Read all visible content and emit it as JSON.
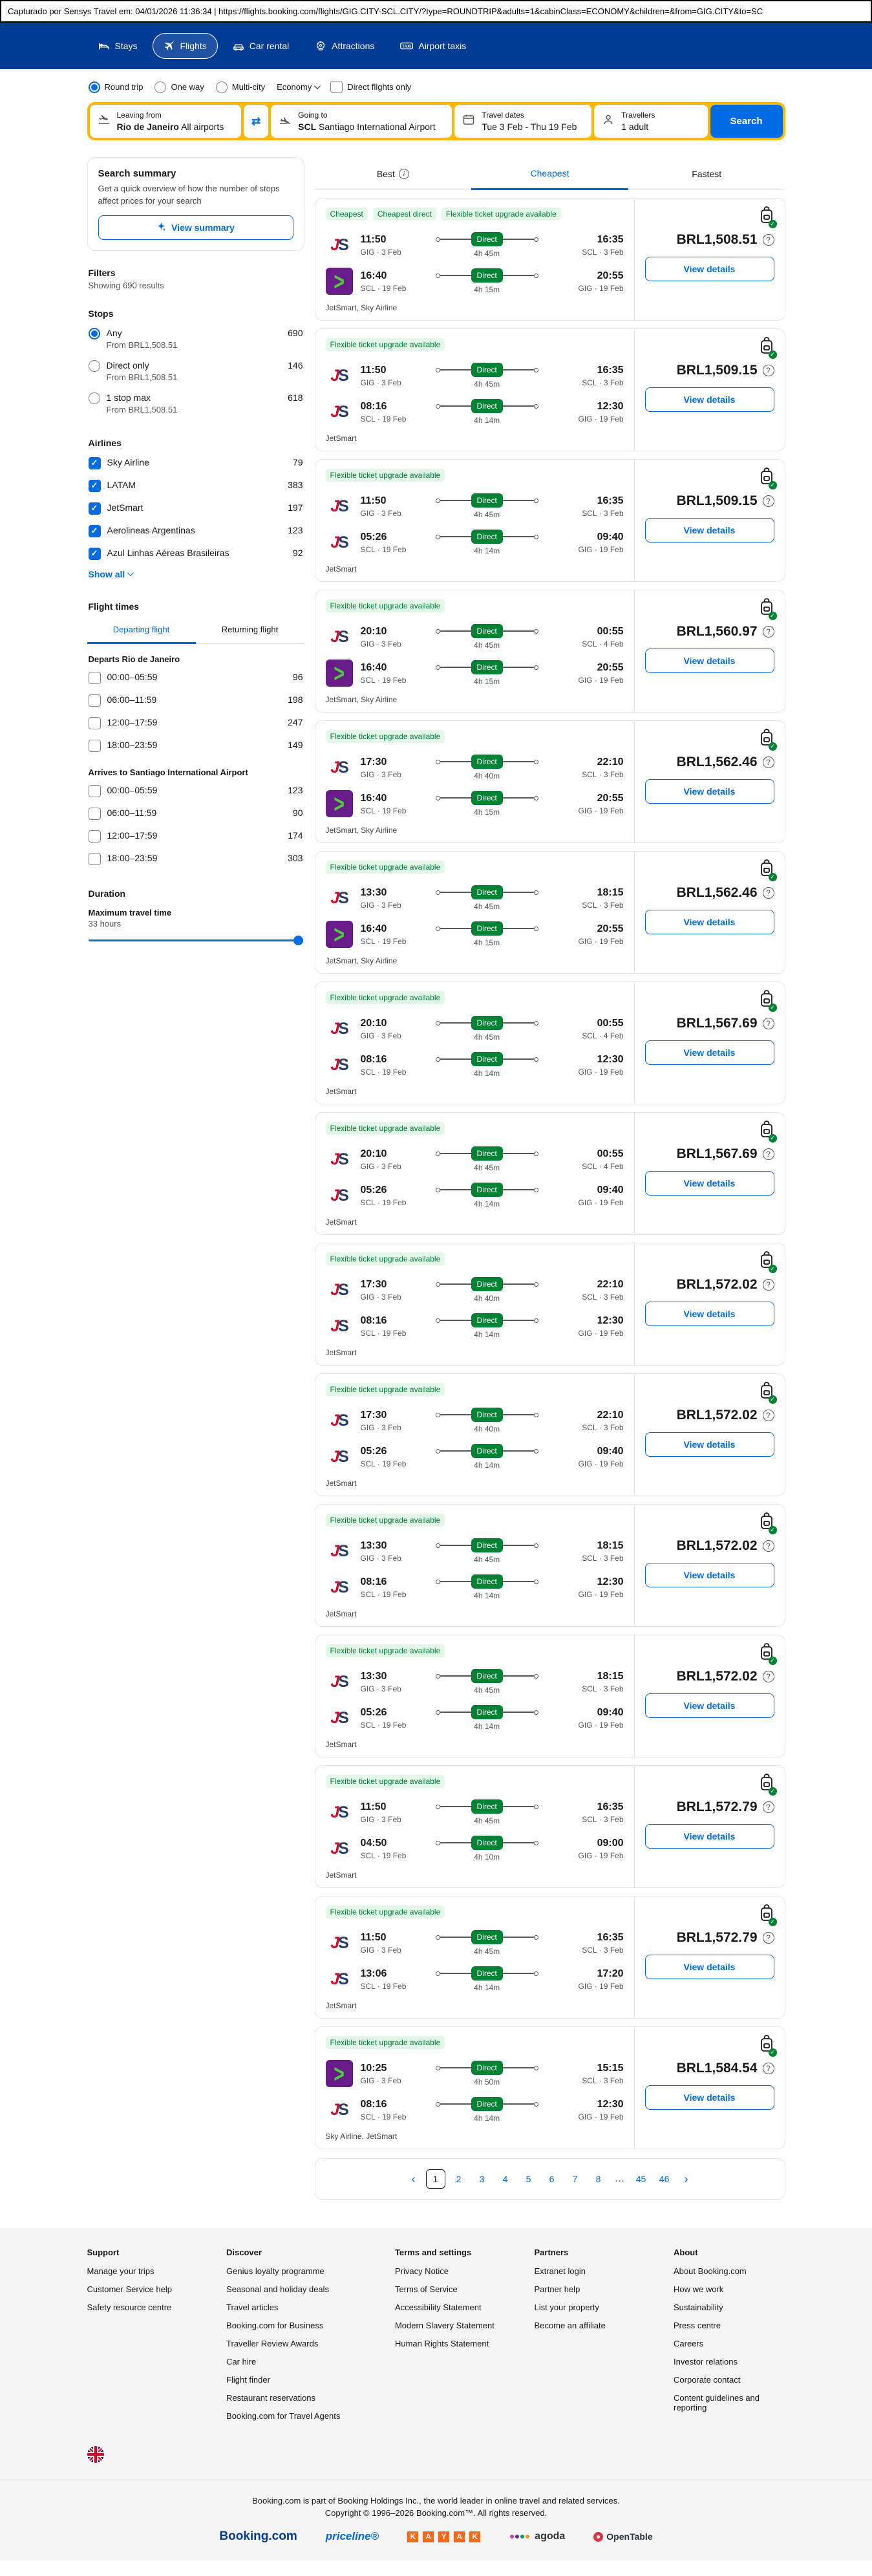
{
  "capture_bar": {
    "text": "Capturado por Sensys Travel em: 04/01/2026 11:36:34  |  https://flights.booking.com/flights/GIG.CITY-SCL.CITY/?type=ROUNDTRIP&adults=1&cabinClass=ECONOMY&children=&from=GIG.CITY&to=SC"
  },
  "header": {
    "nav": [
      {
        "label": "Stays",
        "icon": "bed-icon",
        "active": false
      },
      {
        "label": "Flights",
        "icon": "plane-icon",
        "active": true
      },
      {
        "label": "Car rental",
        "icon": "car-icon",
        "active": false
      },
      {
        "label": "Attractions",
        "icon": "attractions-icon",
        "active": false
      },
      {
        "label": "Airport taxis",
        "icon": "taxi-icon",
        "active": false
      }
    ]
  },
  "search_form": {
    "trip_types": [
      {
        "label": "Round trip",
        "selected": true
      },
      {
        "label": "One way",
        "selected": false
      },
      {
        "label": "Multi-city",
        "selected": false
      }
    ],
    "cabin_class": "Economy",
    "direct_only_label": "Direct flights only",
    "leaving_from": {
      "label": "Leaving from",
      "primary": "Rio de Janeiro",
      "secondary": "All airports"
    },
    "going_to": {
      "label": "Going to",
      "primary": "SCL",
      "secondary": "Santiago International Airport"
    },
    "travel_dates": {
      "label": "Travel dates",
      "value": "Tue 3 Feb - Thu 19 Feb"
    },
    "travellers": {
      "label": "Travellers",
      "value": "1 adult"
    },
    "search_label": "Search"
  },
  "sidebar": {
    "summary_card": {
      "title": "Search summary",
      "description": "Get a quick overview of how the number of stops affect prices for your search",
      "button": "View summary"
    },
    "filters": {
      "title": "Filters",
      "results": "Showing 690 results"
    },
    "stops": {
      "title": "Stops",
      "options": [
        {
          "label": "Any",
          "from": "From BRL1,508.51",
          "count": "690",
          "selected": true
        },
        {
          "label": "Direct only",
          "from": "From BRL1,508.51",
          "count": "146",
          "selected": false
        },
        {
          "label": "1 stop max",
          "from": "From BRL1,508.51",
          "count": "618",
          "selected": false
        }
      ]
    },
    "airlines": {
      "title": "Airlines",
      "show_all": "Show all",
      "options": [
        {
          "label": "Sky Airline",
          "count": "79",
          "checked": true
        },
        {
          "label": "LATAM",
          "count": "383",
          "checked": true
        },
        {
          "label": "JetSmart",
          "count": "197",
          "checked": true
        },
        {
          "label": "Aerolineas Argentinas",
          "count": "123",
          "checked": true
        },
        {
          "label": "Azul Linhas Aéreas Brasileiras",
          "count": "92",
          "checked": true
        }
      ]
    },
    "flight_times": {
      "title": "Flight times",
      "tabs": [
        {
          "label": "Departing flight",
          "active": true
        },
        {
          "label": "Returning flight",
          "active": false
        }
      ],
      "departs": {
        "title": "Departs Rio de Janeiro",
        "options": [
          {
            "label": "00:00–05:59",
            "count": "96"
          },
          {
            "label": "06:00–11:59",
            "count": "198"
          },
          {
            "label": "12:00–17:59",
            "count": "247"
          },
          {
            "label": "18:00–23:59",
            "count": "149"
          }
        ]
      },
      "arrives": {
        "title": "Arrives to Santiago International Airport",
        "options": [
          {
            "label": "00:00–05:59",
            "count": "123"
          },
          {
            "label": "06:00–11:59",
            "count": "90"
          },
          {
            "label": "12:00–17:59",
            "count": "174"
          },
          {
            "label": "18:00–23:59",
            "count": "303"
          }
        ]
      }
    },
    "duration": {
      "title": "Duration",
      "subtitle": "Maximum travel time",
      "value": "33 hours"
    }
  },
  "results": {
    "sort_tabs": [
      {
        "label": "Best",
        "info_icon": true,
        "active": false
      },
      {
        "label": "Cheapest",
        "info_icon": false,
        "active": true
      },
      {
        "label": "Fastest",
        "info_icon": false,
        "active": false
      }
    ],
    "view_details_label": "View details",
    "flights": [
      {
        "badges": [
          "Cheapest",
          "Cheapest direct",
          "Flexible ticket upgrade available"
        ],
        "legs": [
          {
            "airline": "jetsmart",
            "dep_time": "11:50",
            "dep_info": "GIG · 3 Feb",
            "stop": "Direct",
            "duration": "4h 45m",
            "arr_time": "16:35",
            "arr_info": "SCL · 3 Feb"
          },
          {
            "airline": "sky",
            "dep_time": "16:40",
            "dep_info": "SCL · 19 Feb",
            "stop": "Direct",
            "duration": "4h 15m",
            "arr_time": "20:55",
            "arr_info": "GIG · 19 Feb"
          }
        ],
        "airlines_note": "JetSmart, Sky Airline",
        "price": "BRL1,508.51"
      },
      {
        "badges": [
          "Flexible ticket upgrade available"
        ],
        "legs": [
          {
            "airline": "jetsmart",
            "dep_time": "11:50",
            "dep_info": "GIG · 3 Feb",
            "stop": "Direct",
            "duration": "4h 45m",
            "arr_time": "16:35",
            "arr_info": "SCL · 3 Feb"
          },
          {
            "airline": "jetsmart",
            "dep_time": "08:16",
            "dep_info": "SCL · 19 Feb",
            "stop": "Direct",
            "duration": "4h 14m",
            "arr_time": "12:30",
            "arr_info": "GIG · 19 Feb"
          }
        ],
        "airlines_note": "JetSmart",
        "price": "BRL1,509.15"
      },
      {
        "badges": [
          "Flexible ticket upgrade available"
        ],
        "legs": [
          {
            "airline": "jetsmart",
            "dep_time": "11:50",
            "dep_info": "GIG · 3 Feb",
            "stop": "Direct",
            "duration": "4h 45m",
            "arr_time": "16:35",
            "arr_info": "SCL · 3 Feb"
          },
          {
            "airline": "jetsmart",
            "dep_time": "05:26",
            "dep_info": "SCL · 19 Feb",
            "stop": "Direct",
            "duration": "4h 14m",
            "arr_time": "09:40",
            "arr_info": "GIG · 19 Feb"
          }
        ],
        "airlines_note": "JetSmart",
        "price": "BRL1,509.15"
      },
      {
        "badges": [
          "Flexible ticket upgrade available"
        ],
        "legs": [
          {
            "airline": "jetsmart",
            "dep_time": "20:10",
            "dep_info": "GIG · 3 Feb",
            "stop": "Direct",
            "duration": "4h 45m",
            "arr_time": "00:55",
            "arr_info": "SCL · 4 Feb"
          },
          {
            "airline": "sky",
            "dep_time": "16:40",
            "dep_info": "SCL · 19 Feb",
            "stop": "Direct",
            "duration": "4h 15m",
            "arr_time": "20:55",
            "arr_info": "GIG · 19 Feb"
          }
        ],
        "airlines_note": "JetSmart, Sky Airline",
        "price": "BRL1,560.97"
      },
      {
        "badges": [
          "Flexible ticket upgrade available"
        ],
        "legs": [
          {
            "airline": "jetsmart",
            "dep_time": "17:30",
            "dep_info": "GIG · 3 Feb",
            "stop": "Direct",
            "duration": "4h 40m",
            "arr_time": "22:10",
            "arr_info": "SCL · 3 Feb"
          },
          {
            "airline": "sky",
            "dep_time": "16:40",
            "dep_info": "SCL · 19 Feb",
            "stop": "Direct",
            "duration": "4h 15m",
            "arr_time": "20:55",
            "arr_info": "GIG · 19 Feb"
          }
        ],
        "airlines_note": "JetSmart, Sky Airline",
        "price": "BRL1,562.46"
      },
      {
        "badges": [
          "Flexible ticket upgrade available"
        ],
        "legs": [
          {
            "airline": "jetsmart",
            "dep_time": "13:30",
            "dep_info": "GIG · 3 Feb",
            "stop": "Direct",
            "duration": "4h 45m",
            "arr_time": "18:15",
            "arr_info": "SCL · 3 Feb"
          },
          {
            "airline": "sky",
            "dep_time": "16:40",
            "dep_info": "SCL · 19 Feb",
            "stop": "Direct",
            "duration": "4h 15m",
            "arr_time": "20:55",
            "arr_info": "GIG · 19 Feb"
          }
        ],
        "airlines_note": "JetSmart, Sky Airline",
        "price": "BRL1,562.46"
      },
      {
        "badges": [
          "Flexible ticket upgrade available"
        ],
        "legs": [
          {
            "airline": "jetsmart",
            "dep_time": "20:10",
            "dep_info": "GIG · 3 Feb",
            "stop": "Direct",
            "duration": "4h 45m",
            "arr_time": "00:55",
            "arr_info": "SCL · 4 Feb"
          },
          {
            "airline": "jetsmart",
            "dep_time": "08:16",
            "dep_info": "SCL · 19 Feb",
            "stop": "Direct",
            "duration": "4h 14m",
            "arr_time": "12:30",
            "arr_info": "GIG · 19 Feb"
          }
        ],
        "airlines_note": "JetSmart",
        "price": "BRL1,567.69"
      },
      {
        "badges": [
          "Flexible ticket upgrade available"
        ],
        "legs": [
          {
            "airline": "jetsmart",
            "dep_time": "20:10",
            "dep_info": "GIG · 3 Feb",
            "stop": "Direct",
            "duration": "4h 45m",
            "arr_time": "00:55",
            "arr_info": "SCL · 4 Feb"
          },
          {
            "airline": "jetsmart",
            "dep_time": "05:26",
            "dep_info": "SCL · 19 Feb",
            "stop": "Direct",
            "duration": "4h 14m",
            "arr_time": "09:40",
            "arr_info": "GIG · 19 Feb"
          }
        ],
        "airlines_note": "JetSmart",
        "price": "BRL1,567.69"
      },
      {
        "badges": [
          "Flexible ticket upgrade available"
        ],
        "legs": [
          {
            "airline": "jetsmart",
            "dep_time": "17:30",
            "dep_info": "GIG · 3 Feb",
            "stop": "Direct",
            "duration": "4h 40m",
            "arr_time": "22:10",
            "arr_info": "SCL · 3 Feb"
          },
          {
            "airline": "jetsmart",
            "dep_time": "08:16",
            "dep_info": "SCL · 19 Feb",
            "stop": "Direct",
            "duration": "4h 14m",
            "arr_time": "12:30",
            "arr_info": "GIG · 19 Feb"
          }
        ],
        "airlines_note": "JetSmart",
        "price": "BRL1,572.02"
      },
      {
        "badges": [
          "Flexible ticket upgrade available"
        ],
        "legs": [
          {
            "airline": "jetsmart",
            "dep_time": "17:30",
            "dep_info": "GIG · 3 Feb",
            "stop": "Direct",
            "duration": "4h 40m",
            "arr_time": "22:10",
            "arr_info": "SCL · 3 Feb"
          },
          {
            "airline": "jetsmart",
            "dep_time": "05:26",
            "dep_info": "SCL · 19 Feb",
            "stop": "Direct",
            "duration": "4h 14m",
            "arr_time": "09:40",
            "arr_info": "GIG · 19 Feb"
          }
        ],
        "airlines_note": "JetSmart",
        "price": "BRL1,572.02"
      },
      {
        "badges": [
          "Flexible ticket upgrade available"
        ],
        "legs": [
          {
            "airline": "jetsmart",
            "dep_time": "13:30",
            "dep_info": "GIG · 3 Feb",
            "stop": "Direct",
            "duration": "4h 45m",
            "arr_time": "18:15",
            "arr_info": "SCL · 3 Feb"
          },
          {
            "airline": "jetsmart",
            "dep_time": "08:16",
            "dep_info": "SCL · 19 Feb",
            "stop": "Direct",
            "duration": "4h 14m",
            "arr_time": "12:30",
            "arr_info": "GIG · 19 Feb"
          }
        ],
        "airlines_note": "JetSmart",
        "price": "BRL1,572.02"
      },
      {
        "badges": [
          "Flexible ticket upgrade available"
        ],
        "legs": [
          {
            "airline": "jetsmart",
            "dep_time": "13:30",
            "dep_info": "GIG · 3 Feb",
            "stop": "Direct",
            "duration": "4h 45m",
            "arr_time": "18:15",
            "arr_info": "SCL · 3 Feb"
          },
          {
            "airline": "jetsmart",
            "dep_time": "05:26",
            "dep_info": "SCL · 19 Feb",
            "stop": "Direct",
            "duration": "4h 14m",
            "arr_time": "09:40",
            "arr_info": "GIG · 19 Feb"
          }
        ],
        "airlines_note": "JetSmart",
        "price": "BRL1,572.02"
      },
      {
        "badges": [
          "Flexible ticket upgrade available"
        ],
        "legs": [
          {
            "airline": "jetsmart",
            "dep_time": "11:50",
            "dep_info": "GIG · 3 Feb",
            "stop": "Direct",
            "duration": "4h 45m",
            "arr_time": "16:35",
            "arr_info": "SCL · 3 Feb"
          },
          {
            "airline": "jetsmart",
            "dep_time": "04:50",
            "dep_info": "SCL · 19 Feb",
            "stop": "Direct",
            "duration": "4h 10m",
            "arr_time": "09:00",
            "arr_info": "GIG · 19 Feb"
          }
        ],
        "airlines_note": "JetSmart",
        "price": "BRL1,572.79"
      },
      {
        "badges": [
          "Flexible ticket upgrade available"
        ],
        "legs": [
          {
            "airline": "jetsmart",
            "dep_time": "11:50",
            "dep_info": "GIG · 3 Feb",
            "stop": "Direct",
            "duration": "4h 45m",
            "arr_time": "16:35",
            "arr_info": "SCL · 3 Feb"
          },
          {
            "airline": "jetsmart",
            "dep_time": "13:06",
            "dep_info": "SCL · 19 Feb",
            "stop": "Direct",
            "duration": "4h 14m",
            "arr_time": "17:20",
            "arr_info": "GIG · 19 Feb"
          }
        ],
        "airlines_note": "JetSmart",
        "price": "BRL1,572.79"
      },
      {
        "badges": [
          "Flexible ticket upgrade available"
        ],
        "legs": [
          {
            "airline": "sky",
            "dep_time": "10:25",
            "dep_info": "GIG · 3 Feb",
            "stop": "Direct",
            "duration": "4h 50m",
            "arr_time": "15:15",
            "arr_info": "SCL · 3 Feb"
          },
          {
            "airline": "jetsmart",
            "dep_time": "08:16",
            "dep_info": "SCL · 19 Feb",
            "stop": "Direct",
            "duration": "4h 14m",
            "arr_time": "12:30",
            "arr_info": "GIG · 19 Feb"
          }
        ],
        "airlines_note": "Sky Airline, JetSmart",
        "price": "BRL1,584.54"
      }
    ],
    "pagination": {
      "pages": [
        "1",
        "2",
        "3",
        "4",
        "5",
        "6",
        "7",
        "8",
        "...",
        "45",
        "46"
      ],
      "current": "1"
    }
  },
  "footer": {
    "columns": [
      {
        "title": "Support",
        "links": [
          "Manage your trips",
          "Customer Service help",
          "Safety resource centre"
        ]
      },
      {
        "title": "Discover",
        "links": [
          "Genius loyalty programme",
          "Seasonal and holiday deals",
          "Travel articles",
          "Booking.com for Business",
          "Traveller Review Awards",
          "Car hire",
          "Flight finder",
          "Restaurant reservations",
          "Booking.com for Travel Agents"
        ]
      },
      {
        "title": "Terms and settings",
        "links": [
          "Privacy Notice",
          "Terms of Service",
          "Accessibility Statement",
          "Modern Slavery Statement",
          "Human Rights Statement"
        ]
      },
      {
        "title": "Partners",
        "links": [
          "Extranet login",
          "Partner help",
          "List your property",
          "Become an affiliate"
        ]
      },
      {
        "title": "About",
        "links": [
          "About Booking.com",
          "How we work",
          "Sustainability",
          "Press centre",
          "Careers",
          "Investor relations",
          "Corporate contact",
          "Content guidelines and reporting"
        ]
      }
    ],
    "legal_line1": "Booking.com is part of Booking Holdings Inc., the world leader in online travel and related services.",
    "legal_line2": "Copyright © 1996–2026 Booking.com™. All rights reserved.",
    "brands": [
      "Booking.com",
      "priceline",
      "KAYAK",
      "agoda",
      "OpenTable"
    ]
  }
}
